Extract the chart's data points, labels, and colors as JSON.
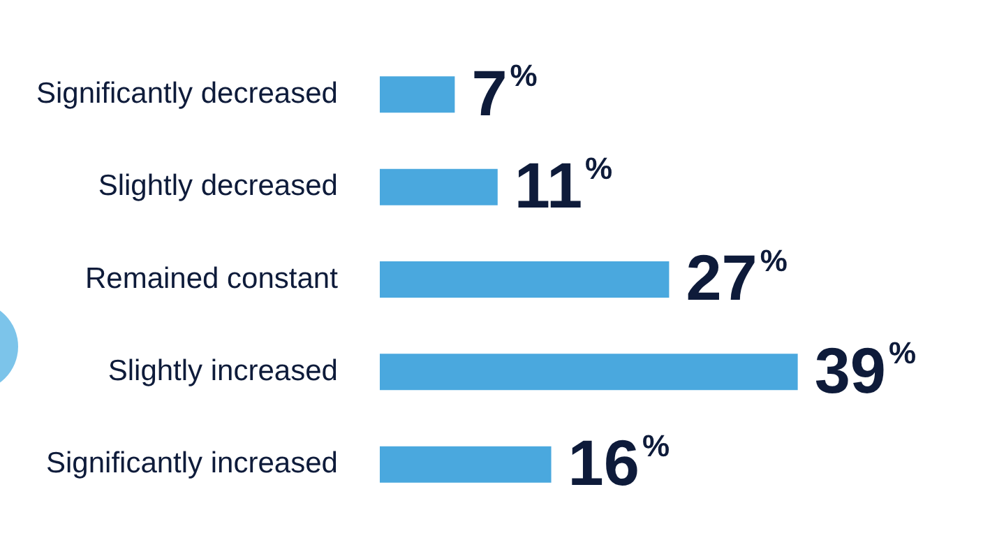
{
  "chart_data": {
    "type": "bar",
    "orientation": "horizontal",
    "categories": [
      "Significantly decreased",
      "Slightly decreased",
      "Remained constant",
      "Slightly increased",
      "Significantly increased"
    ],
    "values": [
      7,
      11,
      27,
      39,
      16
    ],
    "color": "#4aa8de",
    "value_labels": [
      "7%",
      "11%",
      "27%",
      "39%",
      "16%"
    ],
    "legend": false
  }
}
